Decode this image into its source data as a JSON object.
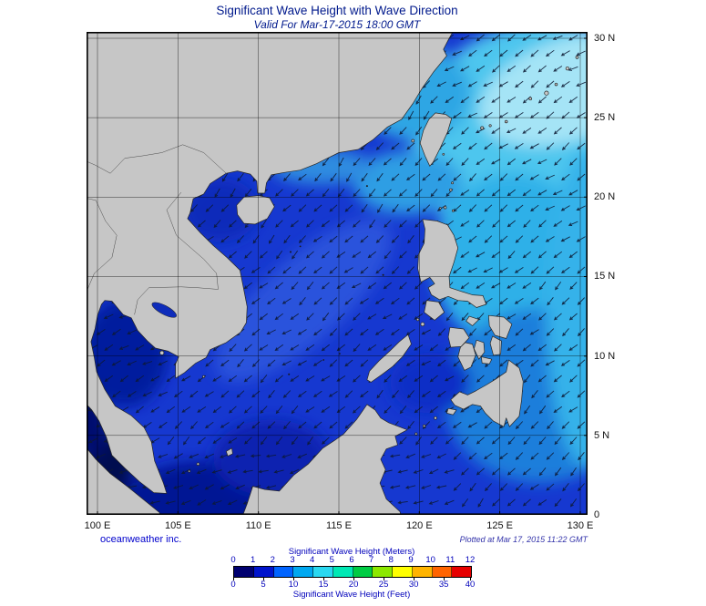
{
  "title": "Significant Wave Height with Wave Direction",
  "subtitle": "Valid For Mar-17-2015 18:00 GMT",
  "axes": {
    "lon_ticks": [
      "100 E",
      "105 E",
      "110 E",
      "115 E",
      "120 E",
      "125 E",
      "130 E"
    ],
    "lat_ticks": [
      "0",
      "5 N",
      "10 N",
      "15 N",
      "20 N",
      "25 N",
      "30 N"
    ]
  },
  "footer": {
    "credit": "oceanweather inc.",
    "plotted": "Plotted at Mar 17, 2015 11:22 GMT"
  },
  "colorbar": {
    "meters_label": "Significant Wave Height (Meters)",
    "feet_label": "Significant Wave Height (Feet)",
    "meters_ticks": [
      0,
      1,
      2,
      3,
      4,
      5,
      6,
      7,
      8,
      9,
      10,
      11,
      12
    ],
    "feet_ticks": [
      0,
      5,
      10,
      15,
      20,
      25,
      30,
      35,
      40
    ],
    "segment_colors": [
      "#000070",
      "#0014cc",
      "#0064ff",
      "#00a8f0",
      "#2ad8f0",
      "#00e8b4",
      "#00cc44",
      "#8ce800",
      "#ffff00",
      "#ffb400",
      "#ff6400",
      "#e60000"
    ]
  },
  "palette": {
    "land": "#c6c6c6",
    "coast": "#262626",
    "country_border": "#4a4a4a",
    "grid": "#000000",
    "frame": "#000000",
    "arrow": "#0d1a33",
    "title_text": "#00198c",
    "axis_text": "#111111",
    "credit_text": "#0000cc",
    "plotted_text": "#3333aa",
    "colorbar_text": "#0000bb",
    "sea": {
      "base": "#1638d0",
      "pacific_bright": "#4ec6ee",
      "pacific_pale": "#a5e4f6",
      "pacific_mid": "#2fb0e8",
      "pacific_south": "#1e7edb",
      "east_edge": "#35b2ea",
      "taiwan_strait": "#2fa6e4",
      "luzon_strait": "#2f9ee4",
      "china_coast": "#2f8ce0",
      "scs_band": "#2a52dc",
      "tonkin": "#0e2cba",
      "gulf_thailand": "#051a9e",
      "java_sea": "#041694",
      "sunda_shelf": "#0a24b0",
      "sulu": "#102ec6",
      "malacca": "#000850",
      "andaman_edge": "#010c6e"
    }
  }
}
